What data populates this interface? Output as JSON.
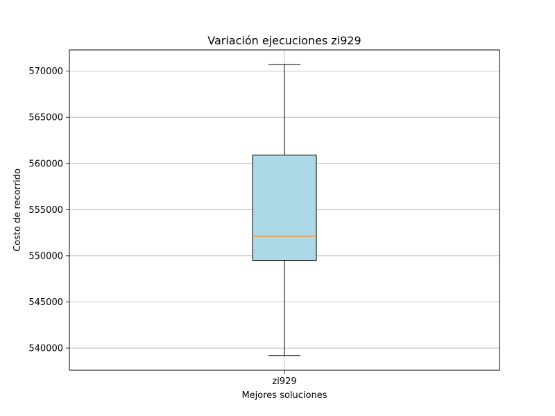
{
  "chart_data": {
    "type": "box",
    "title": "Variación ejecuciones zi929",
    "xlabel": "Mejores soluciones",
    "ylabel": "Costo de recorrido",
    "categories": [
      "zi929"
    ],
    "series": [
      {
        "whisker_low": 539200,
        "q1": 549500,
        "median": 552100,
        "q3": 560900,
        "whisker_high": 570700
      }
    ],
    "ylim": [
      537600,
      572300
    ],
    "yticks": [
      540000,
      545000,
      550000,
      555000,
      560000,
      565000,
      570000
    ],
    "ytick_labels": [
      "540000",
      "545000",
      "550000",
      "555000",
      "560000",
      "565000",
      "570000"
    ],
    "grid": true,
    "box_color": "#add8e6",
    "median_color": "#ff7f0e",
    "grid_color": "#b0b0b0"
  }
}
